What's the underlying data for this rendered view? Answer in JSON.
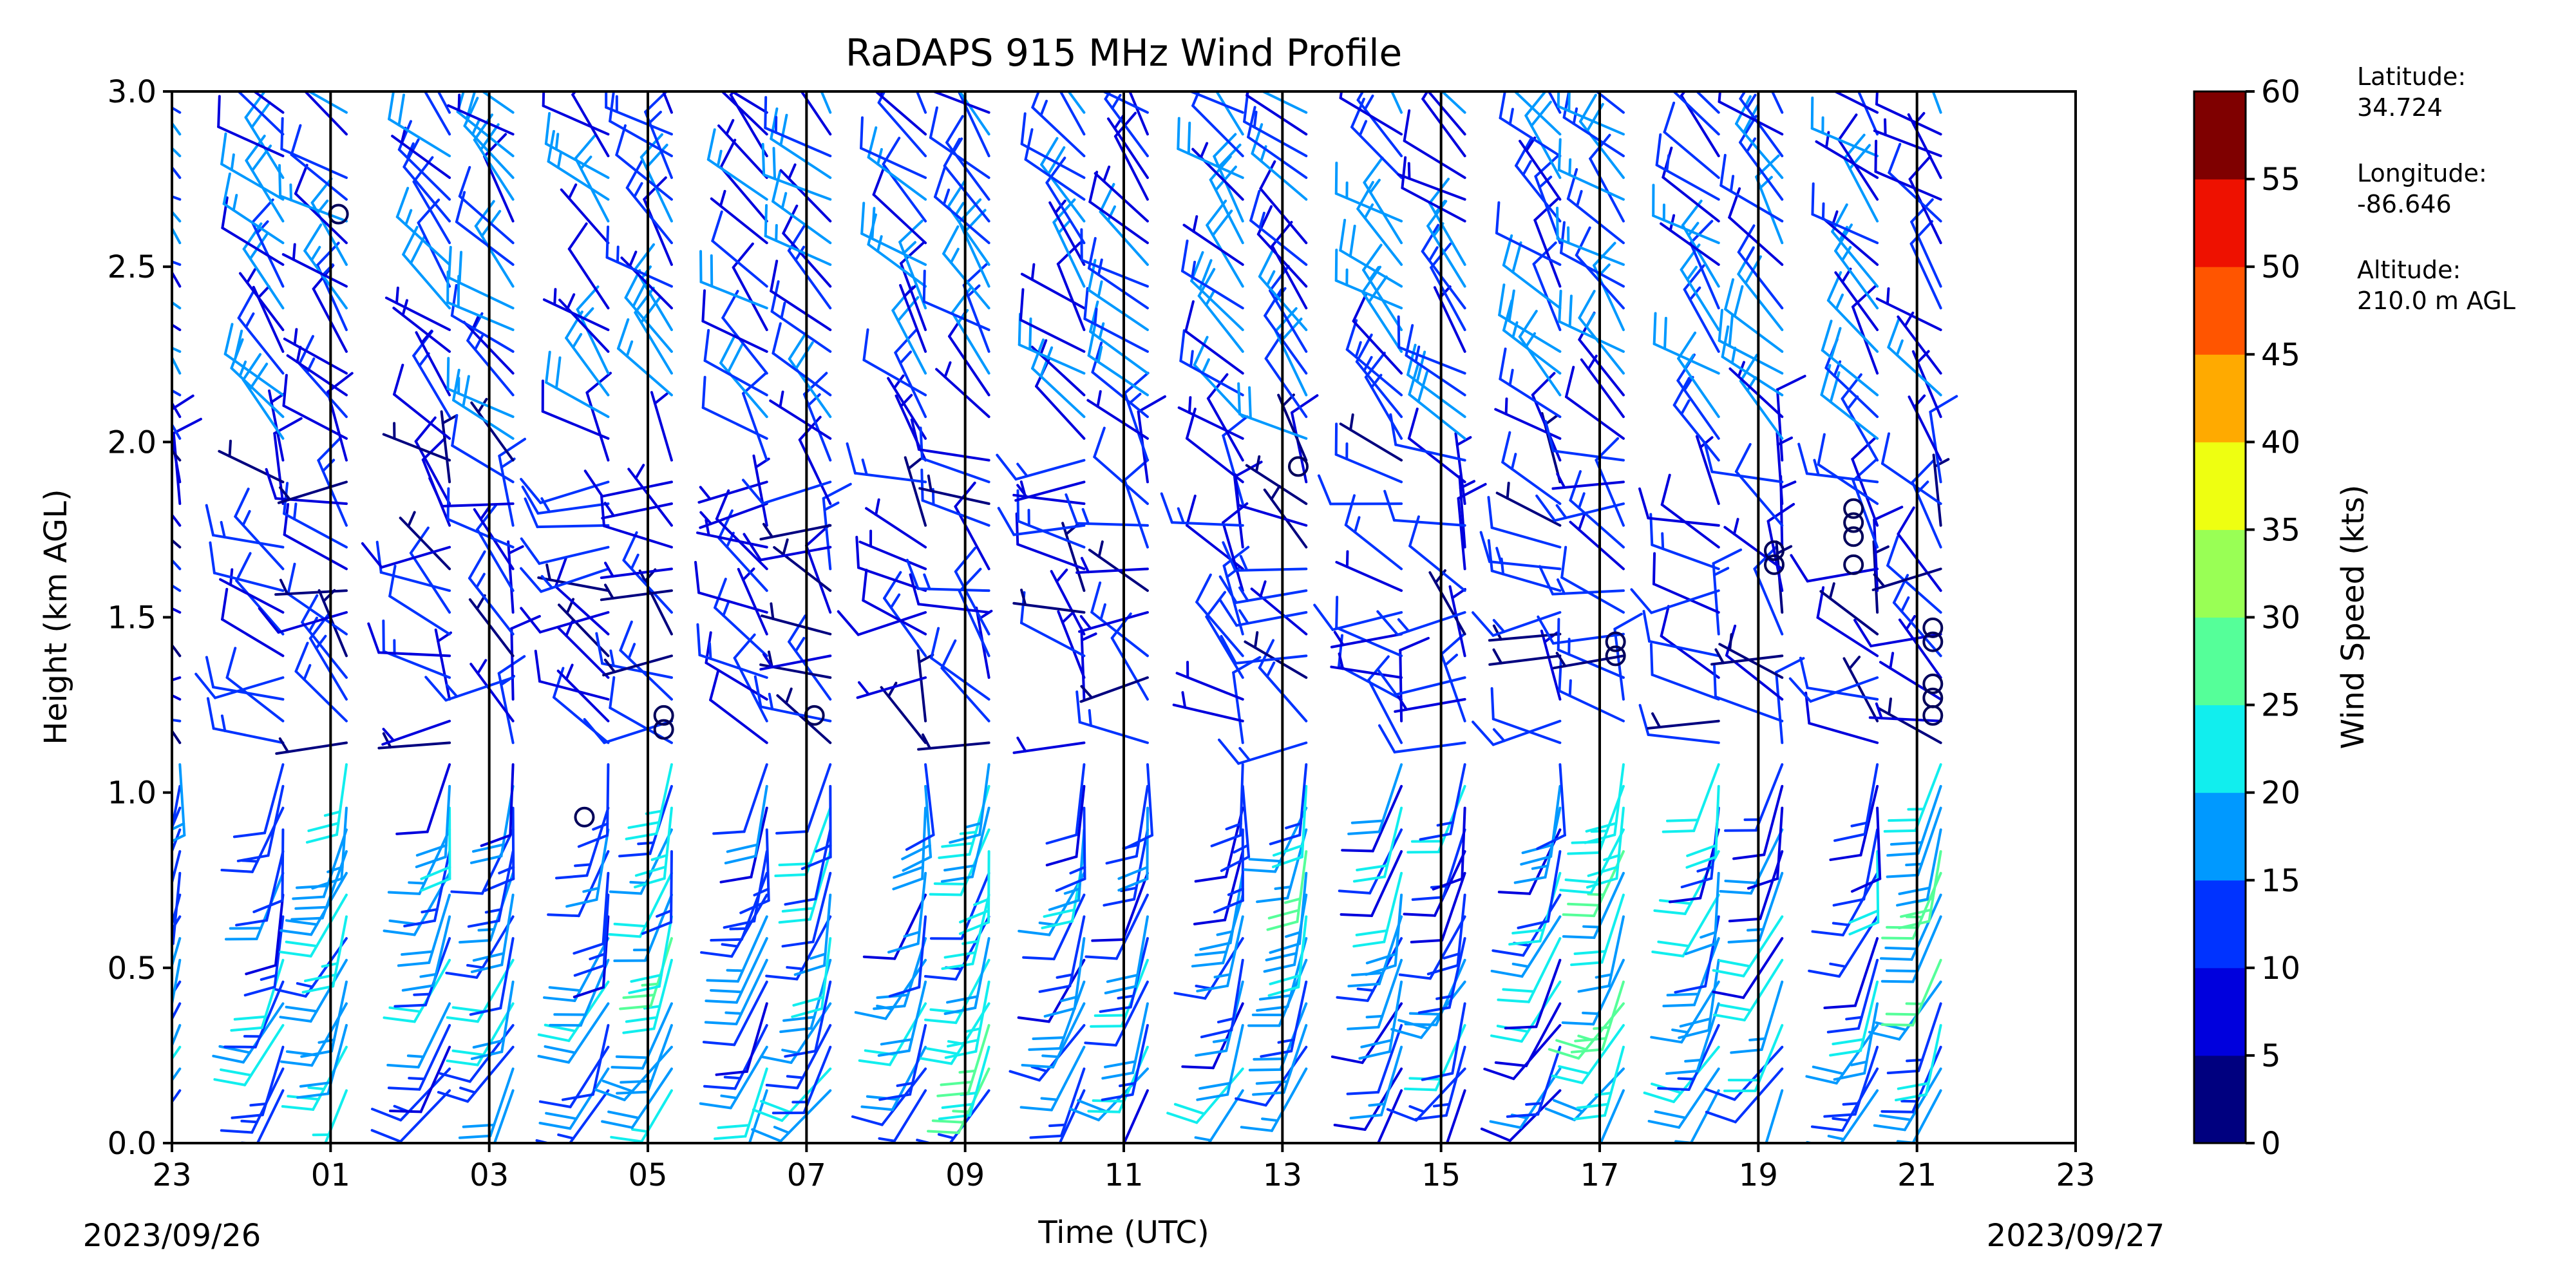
{
  "chart_data": {
    "type": "wind_barb_time_height",
    "title": "RaDAPS 915 MHz Wind Profile",
    "xlabel": "Time (UTC)",
    "ylabel": "Height (km AGL)",
    "ylim": [
      0,
      3.0
    ],
    "yticks": [
      "0.0",
      "0.5",
      "1.0",
      "1.5",
      "2.0",
      "2.5",
      "3.0"
    ],
    "xticks": [
      "23",
      "01",
      "03",
      "05",
      "07",
      "09",
      "11",
      "13",
      "15",
      "17",
      "19",
      "21",
      "23"
    ],
    "date_start": "2023/09/26",
    "date_end": "2023/09/27",
    "colorbar": {
      "label": "Wind Speed (kts)",
      "ticks": [
        "0",
        "5",
        "10",
        "15",
        "20",
        "25",
        "30",
        "35",
        "40",
        "45",
        "50",
        "55",
        "60"
      ],
      "colors": [
        "#00007f",
        "#0000dd",
        "#0033ff",
        "#0099ff",
        "#11eeee",
        "#55ff99",
        "#99ff55",
        "#eeff11",
        "#ffaa00",
        "#ff5500",
        "#ee1100",
        "#7f0000"
      ]
    },
    "station": {
      "latitude_label": "Latitude:",
      "latitude": "34.724",
      "longitude_label": "Longitude:",
      "longitude": "-86.646",
      "altitude_label": "Altitude:",
      "altitude": "210.0 m AGL"
    },
    "grid": "vertical lines at each labeled hour",
    "profile_hours": [
      0.1,
      1.4,
      2.2,
      3.5,
      4.3,
      5.5,
      6.3,
      7.5,
      8.3,
      9.5,
      10.3,
      11.5,
      12.3,
      13.5,
      14.3,
      15.5,
      16.3,
      17.5,
      18.3,
      19.5,
      20.3,
      21.5,
      22.3
    ],
    "calm_markers": [
      {
        "hour": 2.1,
        "height_km": 2.65
      },
      {
        "hour": 5.2,
        "height_km": 0.93
      },
      {
        "hour": 6.2,
        "height_km": 1.22
      },
      {
        "hour": 6.2,
        "height_km": 1.18
      },
      {
        "hour": 8.1,
        "height_km": 1.22
      },
      {
        "hour": 14.2,
        "height_km": 1.93
      },
      {
        "hour": 18.2,
        "height_km": 1.43
      },
      {
        "hour": 18.2,
        "height_km": 1.39
      },
      {
        "hour": 20.2,
        "height_km": 1.69
      },
      {
        "hour": 20.2,
        "height_km": 1.65
      },
      {
        "hour": 21.2,
        "height_km": 1.81
      },
      {
        "hour": 21.2,
        "height_km": 1.77
      },
      {
        "hour": 21.2,
        "height_km": 1.73
      },
      {
        "hour": 21.2,
        "height_km": 1.65
      },
      {
        "hour": 22.2,
        "height_km": 1.47
      },
      {
        "hour": 22.2,
        "height_km": 1.43
      },
      {
        "hour": 22.2,
        "height_km": 1.31
      },
      {
        "hour": 22.2,
        "height_km": 1.27
      },
      {
        "hour": 22.2,
        "height_km": 1.22
      }
    ]
  }
}
